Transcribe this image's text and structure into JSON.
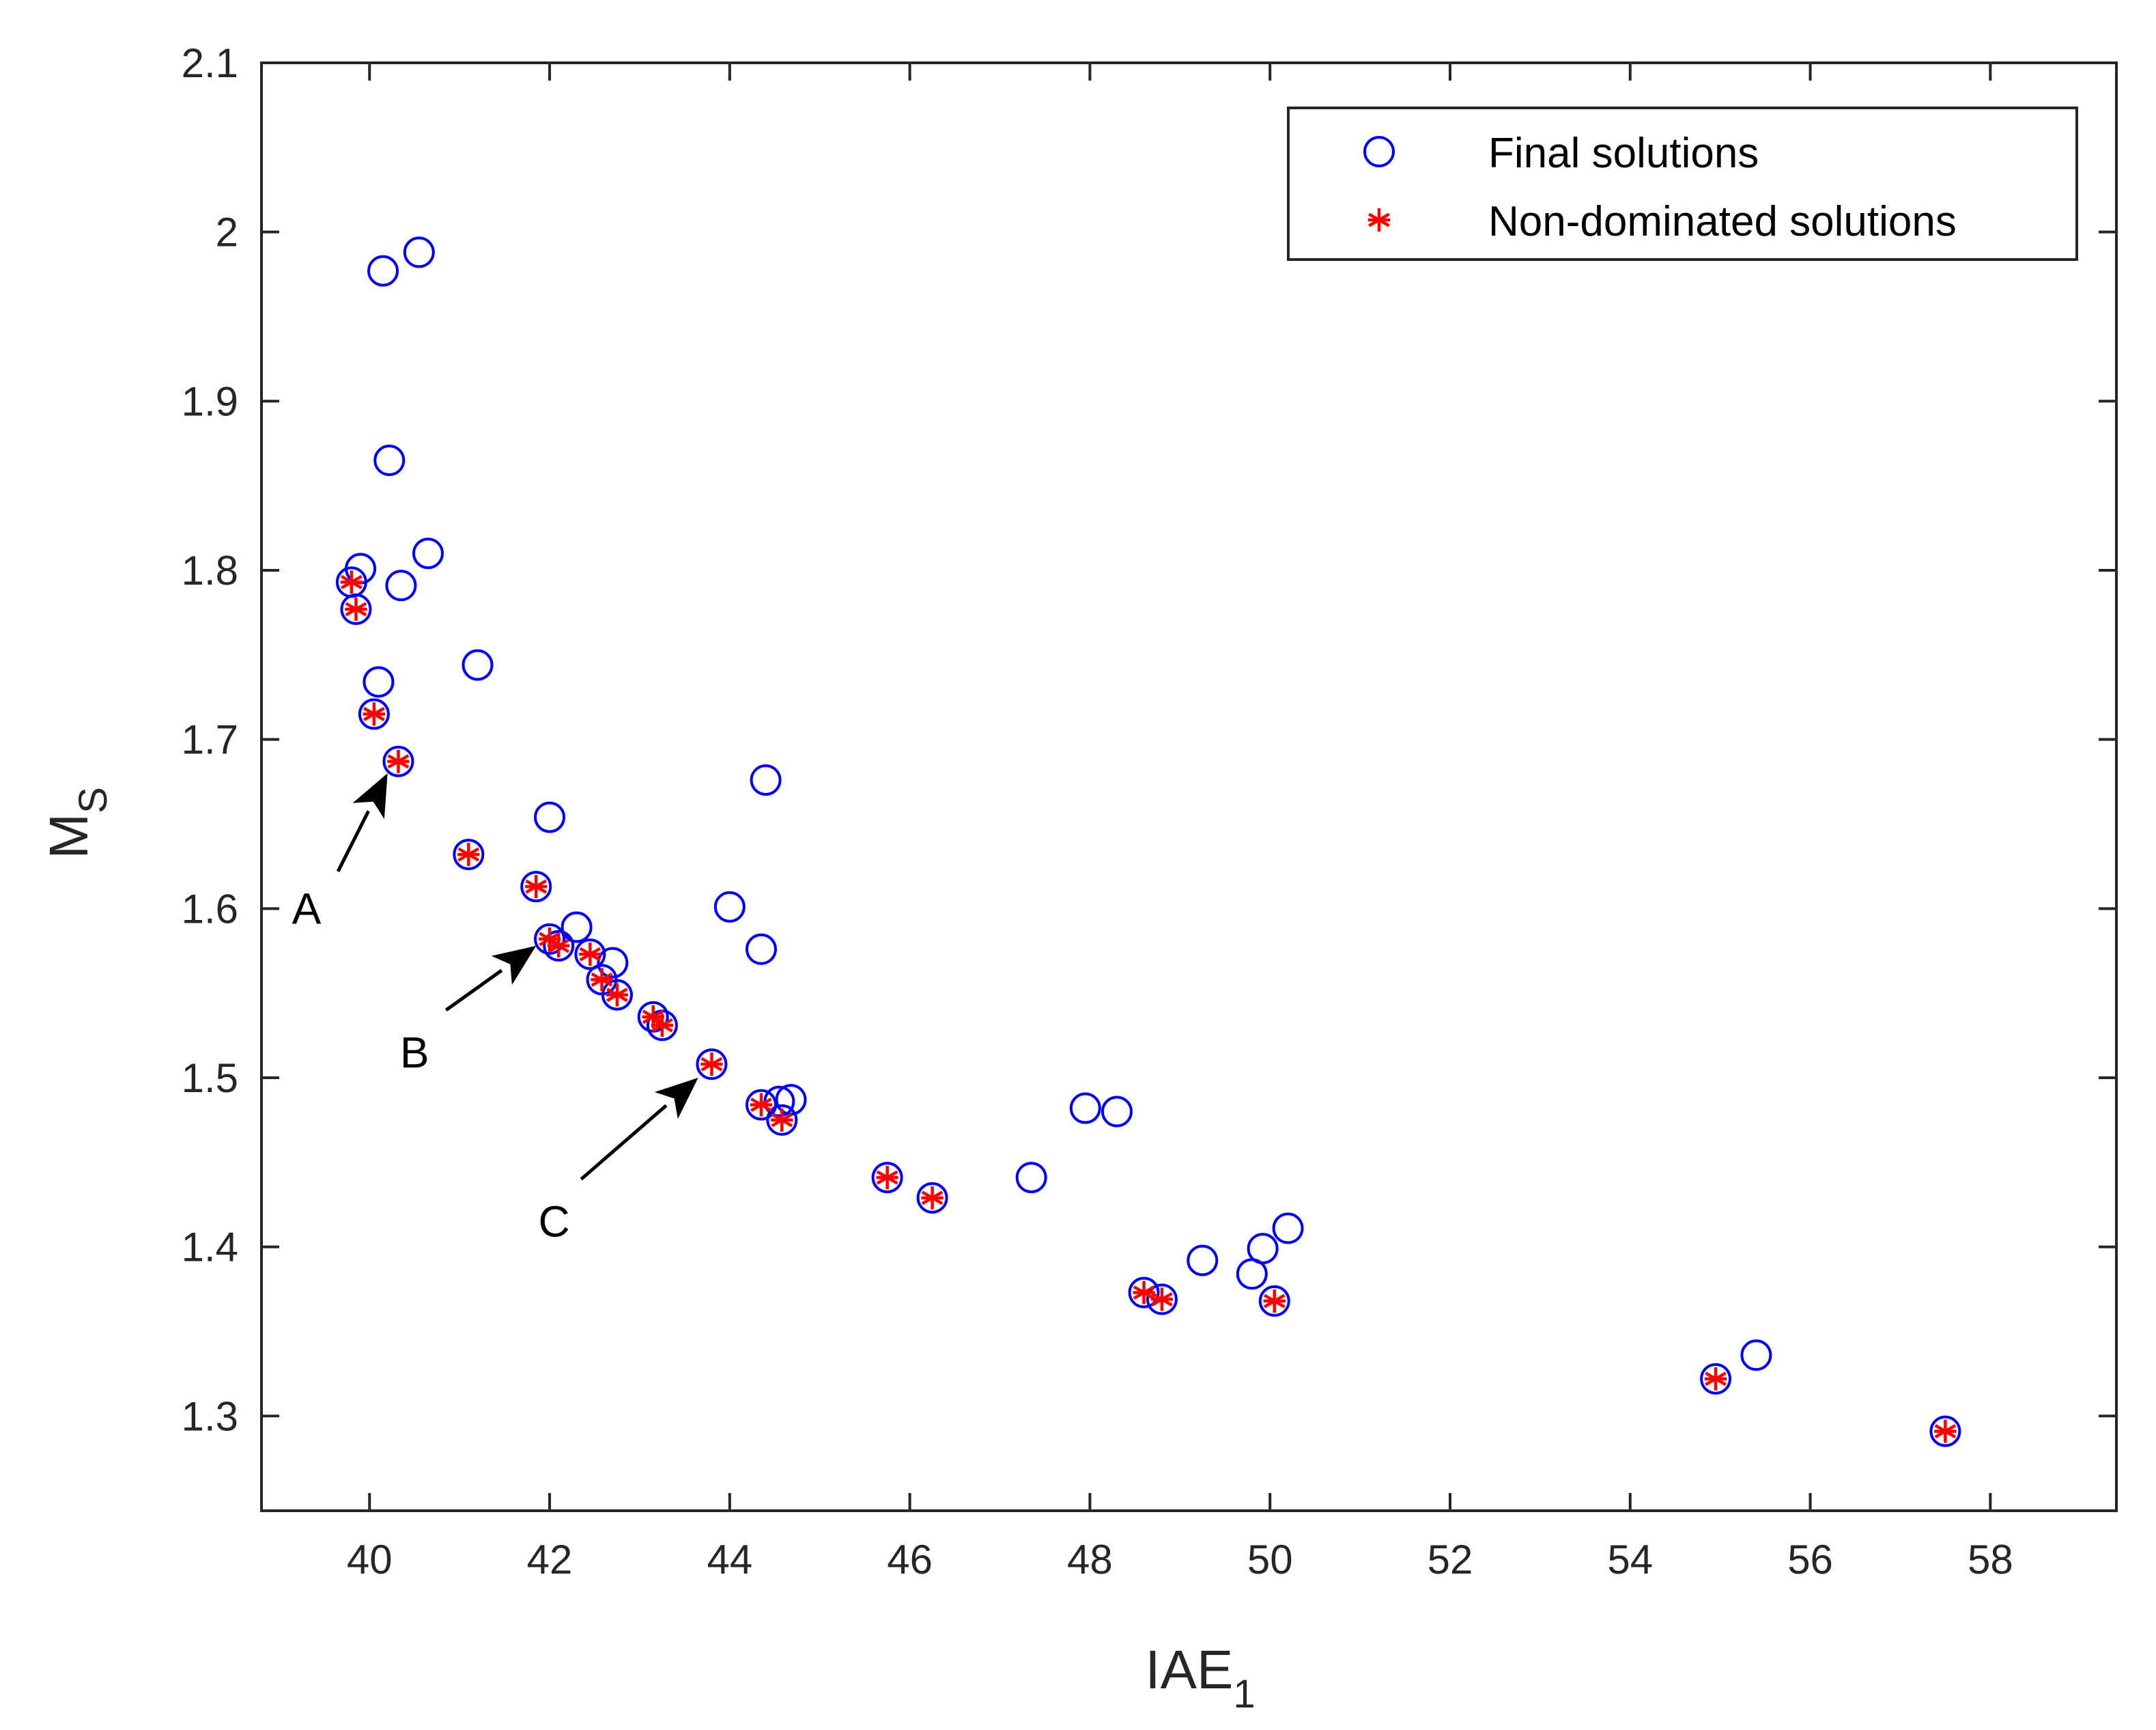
{
  "chart_data": {
    "type": "scatter",
    "title": "",
    "xlabel": {
      "main": "IAE",
      "sub": "1"
    },
    "ylabel": {
      "main": "M",
      "sub": "S"
    },
    "xlim": [
      38.8,
      59.4
    ],
    "ylim": [
      1.244,
      2.1
    ],
    "xticks": [
      "40",
      "42",
      "44",
      "46",
      "48",
      "50",
      "52",
      "54",
      "56",
      "58"
    ],
    "yticks": [
      "1.3",
      "1.4",
      "1.5",
      "1.6",
      "1.7",
      "1.8",
      "1.9",
      "2",
      "2.1"
    ],
    "grid": false,
    "legend": {
      "position": "top-right",
      "entries": [
        "Final solutions",
        "Non-dominated solutions"
      ]
    },
    "colors": {
      "final": "#0000ff",
      "nondominated": "#ff0000",
      "axis": "#262626"
    },
    "series": [
      {
        "name": "Final solutions",
        "marker": "circle",
        "points": [
          [
            40.15,
            1.977
          ],
          [
            40.55,
            1.988
          ],
          [
            40.22,
            1.865
          ],
          [
            39.9,
            1.801
          ],
          [
            40.35,
            1.791
          ],
          [
            40.65,
            1.81
          ],
          [
            39.8,
            1.793
          ],
          [
            39.85,
            1.777
          ],
          [
            40.1,
            1.734
          ],
          [
            41.2,
            1.744
          ],
          [
            40.05,
            1.715
          ],
          [
            40.32,
            1.687
          ],
          [
            41.1,
            1.632
          ],
          [
            42.0,
            1.654
          ],
          [
            41.85,
            1.613
          ],
          [
            44.4,
            1.676
          ],
          [
            44.0,
            1.601
          ],
          [
            44.35,
            1.576
          ],
          [
            42.3,
            1.589
          ],
          [
            42.0,
            1.582
          ],
          [
            42.1,
            1.578
          ],
          [
            42.45,
            1.573
          ],
          [
            42.7,
            1.568
          ],
          [
            42.58,
            1.558
          ],
          [
            42.75,
            1.549
          ],
          [
            43.15,
            1.536
          ],
          [
            43.25,
            1.531
          ],
          [
            43.8,
            1.508
          ],
          [
            44.35,
            1.484
          ],
          [
            44.55,
            1.486
          ],
          [
            44.68,
            1.487
          ],
          [
            44.58,
            1.475
          ],
          [
            45.75,
            1.441
          ],
          [
            46.25,
            1.429
          ],
          [
            47.35,
            1.441
          ],
          [
            47.95,
            1.482
          ],
          [
            48.3,
            1.48
          ],
          [
            48.6,
            1.373
          ],
          [
            48.8,
            1.369
          ],
          [
            49.25,
            1.392
          ],
          [
            49.8,
            1.384
          ],
          [
            49.92,
            1.399
          ],
          [
            50.05,
            1.368
          ],
          [
            50.2,
            1.411
          ],
          [
            54.95,
            1.322
          ],
          [
            55.4,
            1.336
          ],
          [
            57.5,
            1.291
          ]
        ]
      },
      {
        "name": "Non-dominated solutions",
        "marker": "asterisk",
        "points": [
          [
            39.8,
            1.793
          ],
          [
            39.85,
            1.777
          ],
          [
            40.05,
            1.715
          ],
          [
            40.32,
            1.687
          ],
          [
            41.1,
            1.632
          ],
          [
            41.85,
            1.613
          ],
          [
            42.0,
            1.582
          ],
          [
            42.1,
            1.578
          ],
          [
            42.45,
            1.573
          ],
          [
            42.58,
            1.558
          ],
          [
            42.75,
            1.549
          ],
          [
            43.15,
            1.536
          ],
          [
            43.25,
            1.531
          ],
          [
            43.8,
            1.508
          ],
          [
            44.35,
            1.484
          ],
          [
            44.58,
            1.475
          ],
          [
            45.75,
            1.441
          ],
          [
            46.25,
            1.429
          ],
          [
            48.6,
            1.373
          ],
          [
            48.8,
            1.369
          ],
          [
            50.05,
            1.368
          ],
          [
            54.95,
            1.322
          ],
          [
            57.5,
            1.291
          ]
        ]
      }
    ],
    "annotations": [
      {
        "text": "A",
        "label_at": [
          39.3,
          1.6
        ],
        "arrow_from": [
          39.65,
          1.622
        ],
        "arrow_to": [
          40.2,
          1.68
        ]
      },
      {
        "text": "B",
        "label_at": [
          40.5,
          1.515
        ],
        "arrow_from": [
          40.85,
          1.54
        ],
        "arrow_to": [
          41.85,
          1.578
        ]
      },
      {
        "text": "C",
        "label_at": [
          42.05,
          1.415
        ],
        "arrow_from": [
          42.35,
          1.44
        ],
        "arrow_to": [
          43.65,
          1.5
        ]
      }
    ]
  }
}
